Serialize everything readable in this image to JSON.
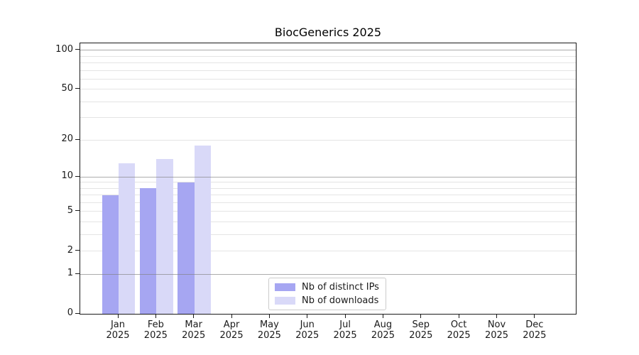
{
  "title": "BiocGenerics 2025",
  "chart_data": {
    "type": "bar",
    "title": "BiocGenerics 2025",
    "categories": [
      "Jan",
      "Feb",
      "Mar",
      "Apr",
      "May",
      "Jun",
      "Jul",
      "Aug",
      "Sep",
      "Oct",
      "Nov",
      "Dec"
    ],
    "year_label": "2025",
    "series": [
      {
        "name": "Nb of distinct IPs",
        "color": "#a6a6f2",
        "values": [
          7,
          8,
          9,
          0,
          0,
          0,
          0,
          0,
          0,
          0,
          0,
          0
        ]
      },
      {
        "name": "Nb of downloads",
        "color": "#d9d9f8",
        "values": [
          13,
          14,
          18,
          0,
          0,
          0,
          0,
          0,
          0,
          0,
          0,
          0
        ]
      }
    ],
    "yscale": "log1p",
    "ylim": [
      0,
      113
    ],
    "ytick_values": [
      0,
      1,
      2,
      5,
      10,
      20,
      50,
      100
    ],
    "major_gridline_values": [
      1,
      10,
      100
    ],
    "minor_gridline_values": [
      2,
      3,
      4,
      5,
      6,
      7,
      8,
      9,
      20,
      30,
      40,
      50,
      60,
      70,
      80,
      90
    ],
    "grid": true,
    "legend_position": "lower center"
  }
}
